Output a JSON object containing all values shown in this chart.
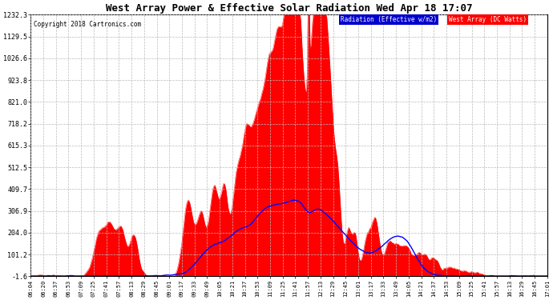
{
  "title": "West Array Power & Effective Solar Radiation Wed Apr 18 17:07",
  "copyright": "Copyright 2018 Cartronics.com",
  "legend_radiation": "Radiation (Effective w/m2)",
  "legend_west": "West Array (DC Watts)",
  "bg_color": "#ffffff",
  "plot_bg_color": "#ffffff",
  "grid_color": "#bbbbbb",
  "radiation_line_color": "#0000ff",
  "west_array_fill_color": "#ff0000",
  "west_array_line_color": "#ff0000",
  "ylim_min": -1.6,
  "ylim_max": 1232.3,
  "yticks": [
    -1.6,
    101.2,
    204.0,
    306.9,
    409.7,
    512.5,
    615.3,
    718.2,
    821.0,
    923.8,
    1026.6,
    1129.5,
    1232.3
  ],
  "ytick_labels": [
    "-1.6",
    "101.2",
    "204.0",
    "306.9",
    "409.7",
    "512.5",
    "615.3",
    "718.2",
    "821.0",
    "923.8",
    "1026.6",
    "1129.5",
    "1232.3"
  ],
  "x_tick_labels": [
    "06:04",
    "06:20",
    "06:37",
    "06:53",
    "07:09",
    "07:25",
    "07:41",
    "07:57",
    "08:13",
    "08:29",
    "08:45",
    "09:01",
    "09:17",
    "09:33",
    "09:49",
    "10:05",
    "10:21",
    "10:37",
    "10:53",
    "11:09",
    "11:25",
    "11:41",
    "11:57",
    "12:13",
    "12:29",
    "12:45",
    "13:01",
    "13:17",
    "13:33",
    "13:49",
    "14:05",
    "14:21",
    "14:37",
    "14:53",
    "15:09",
    "15:25",
    "15:41",
    "15:57",
    "16:13",
    "16:29",
    "16:45",
    "17:01"
  ],
  "legend_radiation_bg": "#0000cc",
  "legend_radiation_fg": "#ffffff",
  "legend_west_bg": "#ff0000",
  "legend_west_fg": "#ffffff"
}
